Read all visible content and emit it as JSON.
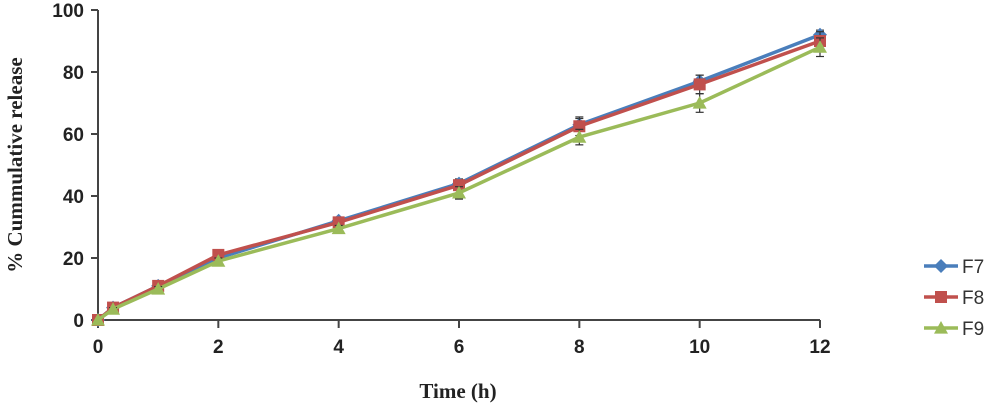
{
  "chart_data": {
    "type": "line",
    "title": "",
    "xlabel": "Time (h)",
    "ylabel": "% Cummulative release",
    "xlim": [
      0,
      12
    ],
    "ylim": [
      0,
      100
    ],
    "xticks": [
      0,
      2,
      4,
      6,
      8,
      10,
      12
    ],
    "yticks": [
      0,
      20,
      40,
      60,
      80,
      100
    ],
    "grid": false,
    "legend_position": "right",
    "x": [
      0,
      0.25,
      1,
      2,
      4,
      6,
      8,
      10,
      12
    ],
    "series": [
      {
        "name": "F7",
        "color": "#4a7ebb",
        "marker": "diamond",
        "values": [
          0,
          4,
          11,
          20,
          32,
          44,
          63,
          77,
          92
        ],
        "errors": [
          0,
          0.5,
          0.8,
          1,
          1,
          1.5,
          2,
          2,
          1.5
        ]
      },
      {
        "name": "F8",
        "color": "#c0504d",
        "marker": "square",
        "values": [
          0,
          4,
          11,
          21,
          31.5,
          43.5,
          62.5,
          76,
          90
        ],
        "errors": [
          0,
          0.5,
          0.8,
          1,
          1,
          1.5,
          3,
          3,
          3
        ]
      },
      {
        "name": "F9",
        "color": "#9bbb59",
        "marker": "triangle",
        "values": [
          0,
          3.5,
          10,
          19,
          29.5,
          41,
          59,
          70,
          88
        ],
        "errors": [
          0,
          0.5,
          0.8,
          1,
          1,
          2,
          2.5,
          3,
          3
        ]
      }
    ]
  }
}
